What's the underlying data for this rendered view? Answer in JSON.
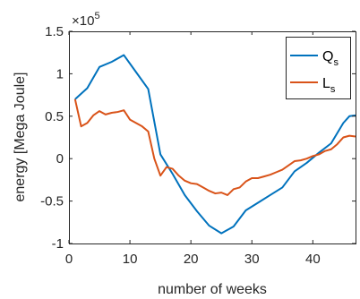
{
  "chart_data": {
    "type": "line",
    "xlabel": "number of weeks",
    "ylabel": "energy [Mega Joule]",
    "exponent_base": "×10",
    "exponent_power": "5",
    "xlim": [
      0,
      47
    ],
    "ylim": [
      -100000,
      150000
    ],
    "xticks": [
      0,
      10,
      20,
      30,
      40
    ],
    "yticks": [
      -100000,
      -50000,
      0,
      50000,
      100000,
      150000
    ],
    "ytick_labels": [
      "-1",
      "-0.5",
      "0",
      "0.5",
      "1",
      "1.5"
    ],
    "grid": false,
    "legend_position": "top-right",
    "series": [
      {
        "name": "Q",
        "name_sub": "s",
        "color": "#0072BD",
        "x": [
          1,
          3,
          5,
          7,
          9,
          11,
          13,
          15,
          17,
          19,
          21,
          23,
          25,
          27,
          29,
          31,
          33,
          35,
          37,
          39,
          41,
          43,
          45,
          46,
          47
        ],
        "y": [
          70000,
          83000,
          108000,
          114000,
          122000,
          102000,
          82000,
          5000,
          -18000,
          -43000,
          -62000,
          -79000,
          -88000,
          -80000,
          -61000,
          -52000,
          -43000,
          -34000,
          -15000,
          -5000,
          7000,
          18000,
          42000,
          50000,
          51000
        ]
      },
      {
        "name": "L",
        "name_sub": "s",
        "color": "#D95319",
        "x": [
          1,
          2,
          3,
          4,
          5,
          6,
          7,
          8,
          9,
          10,
          11,
          12,
          13,
          14,
          15,
          16,
          17,
          18,
          19,
          20,
          21,
          22,
          23,
          24,
          25,
          26,
          27,
          28,
          29,
          30,
          31,
          32,
          33,
          34,
          35,
          36,
          37,
          38,
          39,
          40,
          41,
          42,
          43,
          44,
          45,
          46,
          47
        ],
        "y": [
          70000,
          38000,
          42000,
          51000,
          56000,
          52000,
          54000,
          55000,
          57000,
          46000,
          42000,
          38000,
          32000,
          0,
          -20000,
          -10000,
          -12000,
          -20000,
          -26000,
          -29000,
          -30000,
          -34000,
          -38000,
          -41000,
          -40000,
          -43000,
          -36000,
          -34000,
          -27000,
          -23000,
          -23000,
          -21000,
          -19000,
          -16000,
          -13000,
          -8000,
          -3000,
          -2000,
          0,
          3000,
          5000,
          9000,
          11000,
          17000,
          25000,
          27000,
          26000
        ]
      }
    ]
  }
}
